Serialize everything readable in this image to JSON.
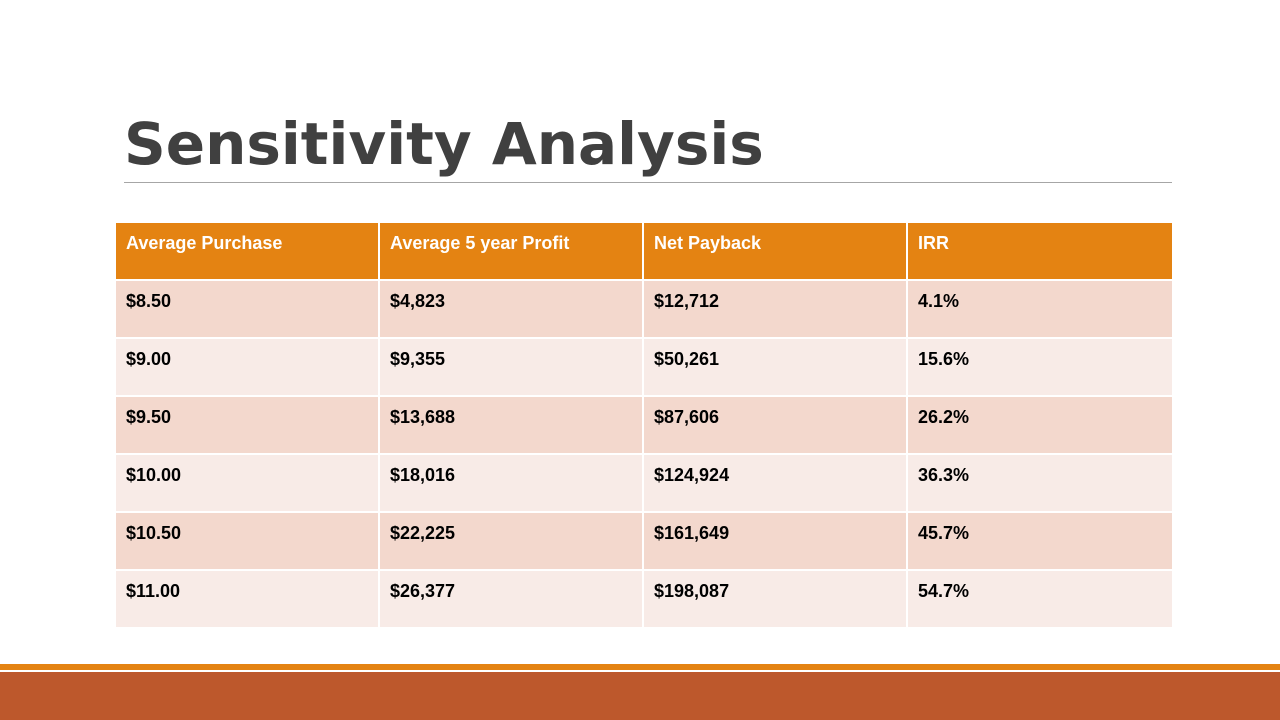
{
  "slide": {
    "title": "Sensitivity Analysis"
  },
  "table": {
    "headers": [
      "Average Purchase",
      "Average 5 year Profit",
      "Net Payback",
      "IRR"
    ],
    "rows": [
      [
        "$8.50",
        "$4,823",
        "$12,712",
        "4.1%"
      ],
      [
        "$9.00",
        "$9,355",
        "$50,261",
        "15.6%"
      ],
      [
        "$9.50",
        "$13,688",
        "$87,606",
        "26.2%"
      ],
      [
        "$10.00",
        "$18,016",
        "$124,924",
        "36.3%"
      ],
      [
        "$10.50",
        "$22,225",
        "$161,649",
        "45.7%"
      ],
      [
        "$11.00",
        "$26,377",
        "$198,087",
        "54.7%"
      ]
    ]
  },
  "colors": {
    "header_fill": "#e48312",
    "row_odd": "#f3d8cd",
    "row_even": "#f8ebe7",
    "footer_bar": "#bd582c",
    "title_text": "#404040"
  }
}
